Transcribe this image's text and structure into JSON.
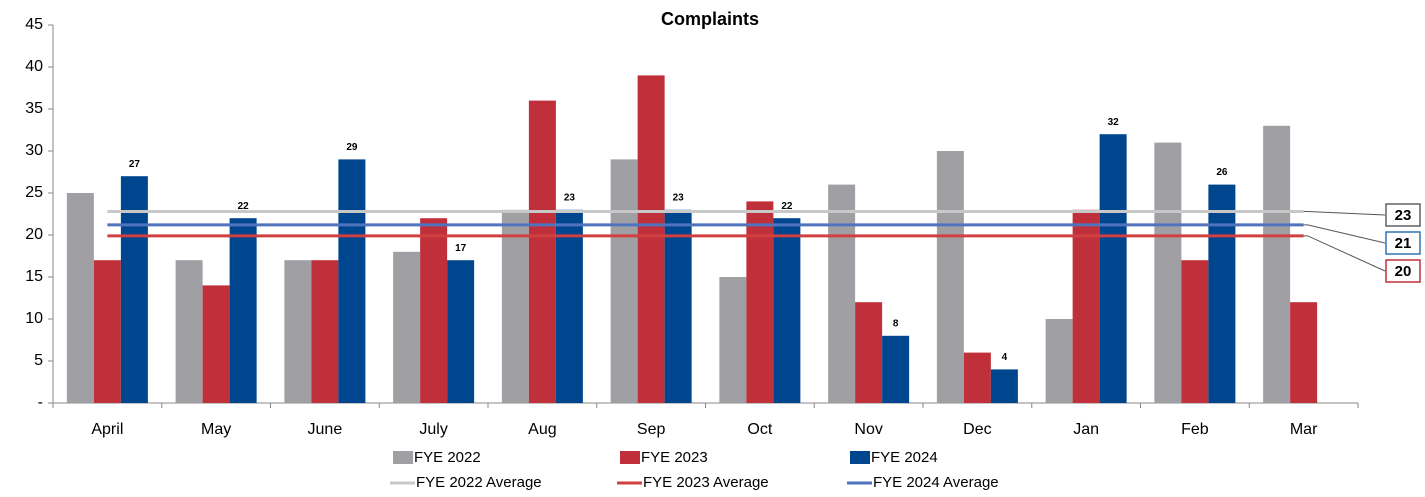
{
  "chart_data": {
    "type": "bar",
    "title": "Complaints",
    "categories": [
      "April",
      "May",
      "June",
      "July",
      "Aug",
      "Sep",
      "Oct",
      "Nov",
      "Dec",
      "Jan",
      "Feb",
      "Mar"
    ],
    "series": [
      {
        "name": "FYE 2022",
        "color": "#a0a0a4",
        "values": [
          25,
          17,
          17,
          18,
          23,
          29,
          15,
          26,
          30,
          10,
          31,
          33
        ]
      },
      {
        "name": "FYE 2023",
        "color": "#c0303a",
        "values": [
          17,
          14,
          17,
          22,
          36,
          39,
          24,
          12,
          6,
          23,
          17,
          12
        ]
      },
      {
        "name": "FYE 2024",
        "color": "#00468e",
        "values": [
          27,
          22,
          29,
          17,
          23,
          23,
          22,
          8,
          4,
          32,
          26,
          null
        ],
        "show_value_labels": true
      }
    ],
    "averages": [
      {
        "name": "FYE 2022 Average",
        "color": "#c8c8c8",
        "value": 22.8,
        "value_label": "23",
        "box_color": "#606060"
      },
      {
        "name": "FYE 2023 Average",
        "color": "#d04040",
        "value": 19.9,
        "value_label": "20",
        "box_color": "#c0303a"
      },
      {
        "name": "FYE 2024 Average",
        "color": "#4f74bd",
        "value": 21.2,
        "value_label": "21",
        "box_color": "#2e75b6"
      }
    ],
    "ylim": [
      0,
      45
    ],
    "yticks": [
      {
        "value": 0,
        "label": "-"
      },
      5,
      10,
      15,
      20,
      25,
      30,
      35,
      40,
      45
    ]
  }
}
